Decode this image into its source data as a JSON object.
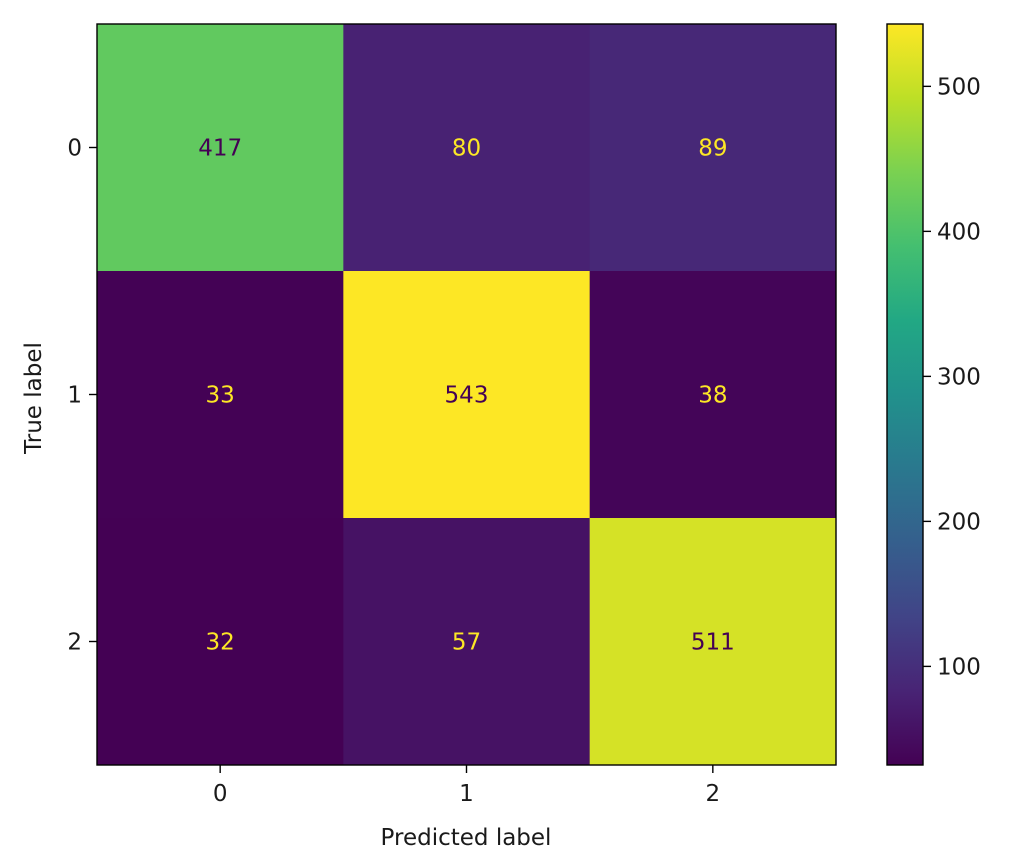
{
  "chart_data": {
    "type": "heatmap",
    "title": "",
    "xlabel": "Predicted label",
    "ylabel": "True label",
    "x_categories": [
      "0",
      "1",
      "2"
    ],
    "y_categories": [
      "0",
      "1",
      "2"
    ],
    "matrix": [
      [
        417,
        80,
        89
      ],
      [
        33,
        543,
        38
      ],
      [
        32,
        57,
        511
      ]
    ],
    "colormap": "viridis",
    "colorbar": {
      "vmin": 32,
      "vmax": 543,
      "ticks": [
        100,
        200,
        300,
        400,
        500
      ]
    },
    "text_colors": {
      "on_dark": "#fde725",
      "on_light": "#440154"
    },
    "grid": false,
    "legend": "none"
  }
}
